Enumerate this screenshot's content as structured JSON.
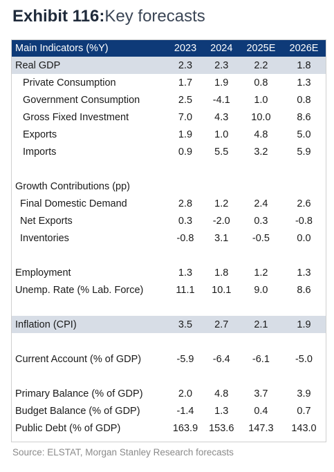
{
  "title": {
    "exhibit": "Exhibit 116:",
    "text": "Key forecasts"
  },
  "header": [
    "Main Indicators (%Y)",
    "2023",
    "2024",
    "2025E",
    "2026E"
  ],
  "rows": {
    "r0": [
      "Real GDP",
      "2.3",
      "2.3",
      "2.2",
      "1.8"
    ],
    "r1": [
      "Private Consumption",
      "1.7",
      "1.9",
      "0.8",
      "1.3"
    ],
    "r2": [
      "Government Consumption",
      "2.5",
      "-4.1",
      "1.0",
      "0.8"
    ],
    "r3": [
      "Gross Fixed Investment",
      "7.0",
      "4.3",
      "10.0",
      "8.6"
    ],
    "r4": [
      "Exports",
      "1.9",
      "1.0",
      "4.8",
      "5.0"
    ],
    "r5": [
      "Imports",
      "0.9",
      "5.5",
      "3.2",
      "5.9"
    ],
    "r6": [
      "Growth Contributions (pp)",
      "",
      "",
      "",
      ""
    ],
    "r7": [
      "Final Domestic Demand",
      "2.8",
      "1.2",
      "2.4",
      "2.6"
    ],
    "r8": [
      "Net Exports",
      "0.3",
      "-2.0",
      "0.3",
      "-0.8"
    ],
    "r9": [
      "Inventories",
      "-0.8",
      "3.1",
      "-0.5",
      "0.0"
    ],
    "r10": [
      "Employment",
      "1.3",
      "1.8",
      "1.2",
      "1.3"
    ],
    "r11": [
      "Unemp. Rate (% Lab. Force)",
      "11.1",
      "10.1",
      "9.0",
      "8.6"
    ],
    "r12": [
      "Inflation (CPI)",
      "3.5",
      "2.7",
      "2.1",
      "1.9"
    ],
    "r13": [
      "Current Account (% of GDP)",
      "-5.9",
      "-6.4",
      "-6.1",
      "-5.0"
    ],
    "r14": [
      "Primary Balance (% of GDP)",
      "2.0",
      "4.8",
      "3.7",
      "3.9"
    ],
    "r15": [
      "Budget Balance (% of GDP)",
      "-1.4",
      "1.3",
      "0.4",
      "0.7"
    ],
    "r16": [
      "Public Debt (% of GDP)",
      "163.9",
      "153.6",
      "147.3",
      "143.0"
    ]
  },
  "source": "Source: ELSTAT, Morgan Stanley Research forecasts",
  "colors": {
    "header_bg": "#0e3a78",
    "highlight_bg": "#d7dde6"
  }
}
